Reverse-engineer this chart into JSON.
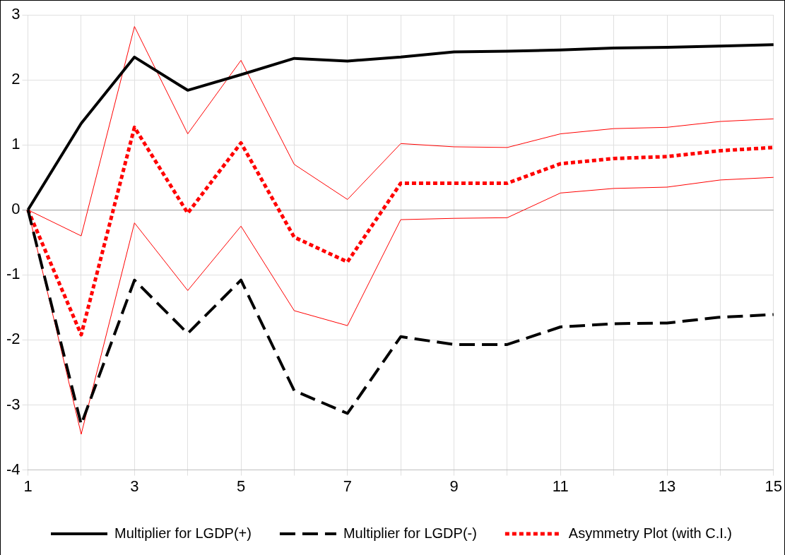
{
  "chart_data": {
    "type": "line",
    "categories": [
      "1",
      null,
      "3",
      null,
      "5",
      null,
      "7",
      null,
      "9",
      null,
      "11",
      null,
      "13",
      null,
      "15"
    ],
    "ylim": [
      -4,
      3
    ],
    "yticks": [
      -4,
      -3,
      -2,
      -1,
      0,
      1,
      2,
      3
    ],
    "grid": true,
    "legend": "bottom",
    "marker": "none",
    "series": [
      {
        "name": "Multiplier for LGDP(+)",
        "color": "#000000",
        "line_style": "solid",
        "values": [
          0,
          1.33,
          2.35,
          1.84,
          2.08,
          2.33,
          2.29,
          2.35,
          2.43,
          2.44,
          2.46,
          2.49,
          2.5,
          2.52,
          2.54
        ]
      },
      {
        "name": "Multiplier for LGDP(-)",
        "color": "#000000",
        "line_style": "dashed",
        "values": [
          0,
          -3.3,
          -1.08,
          -1.9,
          -1.08,
          -2.78,
          -3.13,
          -1.95,
          -2.07,
          -2.07,
          -1.8,
          -1.75,
          -1.74,
          -1.65,
          -1.61
        ]
      },
      {
        "name": "Asymmetry Plot (with C.I.)",
        "color": "#ff0000",
        "line_style": "dotted",
        "values": [
          0,
          -1.92,
          1.27,
          -0.05,
          1.03,
          -0.42,
          -0.8,
          0.41,
          0.41,
          0.41,
          0.71,
          0.79,
          0.82,
          0.91,
          0.96
        ]
      },
      {
        "color": "#ff0000",
        "line_style": "solid",
        "values": [
          0,
          -0.4,
          2.82,
          1.17,
          2.3,
          0.7,
          0.16,
          1.02,
          0.97,
          0.96,
          1.17,
          1.25,
          1.27,
          1.36,
          1.4
        ]
      },
      {
        "color": "#ff0000",
        "line_style": "solid",
        "values": [
          0,
          -3.45,
          -0.2,
          -1.24,
          -0.25,
          -1.55,
          -1.78,
          -0.15,
          -0.13,
          -0.12,
          0.26,
          0.33,
          0.35,
          0.46,
          0.5
        ]
      }
    ]
  }
}
